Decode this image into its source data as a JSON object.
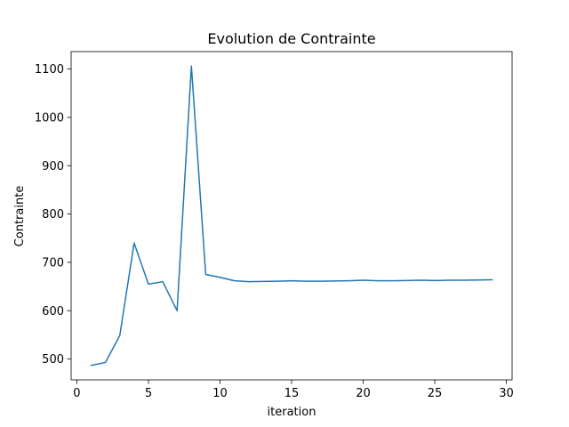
{
  "chart_data": {
    "type": "line",
    "title": "Evolution de Contrainte",
    "xlabel": "iteration",
    "ylabel": "Contrainte",
    "xlim": [
      -0.4,
      30.4
    ],
    "ylim": [
      457,
      1136
    ],
    "xticks": [
      0,
      5,
      10,
      15,
      20,
      25,
      30
    ],
    "yticks": [
      500,
      600,
      700,
      800,
      900,
      1000,
      1100
    ],
    "grid": false,
    "series": [
      {
        "color": "#1f77b4",
        "x": [
          1,
          2,
          3,
          4,
          5,
          6,
          7,
          8,
          9,
          10,
          11,
          12,
          13,
          14,
          15,
          16,
          17,
          18,
          19,
          20,
          21,
          22,
          23,
          24,
          25,
          26,
          27,
          28,
          29
        ],
        "y": [
          487,
          493,
          549,
          740,
          655,
          660,
          600,
          1106,
          675,
          669,
          662,
          660,
          660.5,
          661,
          662,
          661,
          661,
          661.5,
          662,
          663,
          662,
          662,
          662.5,
          663,
          662.5,
          663,
          663,
          663.5,
          664
        ]
      }
    ]
  }
}
